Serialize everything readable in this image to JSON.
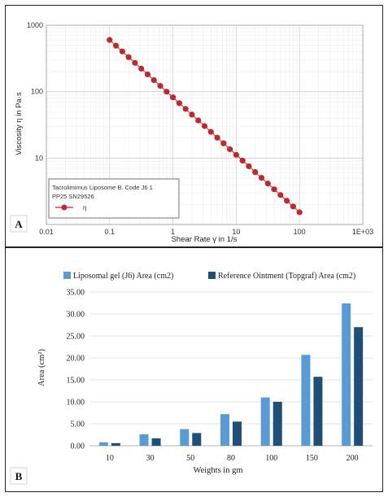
{
  "chart_data": [
    {
      "panel": "A",
      "type": "scatter",
      "xscale": "log",
      "yscale": "log",
      "xlabel": "Shear Rate γ̇ in 1/s",
      "ylabel": "Viscosity η in Pa·s",
      "x_ticks": [
        "0.01",
        "0.1",
        "1",
        "10",
        "100",
        "1E+03"
      ],
      "y_ticks": [
        "1000",
        "100",
        "10"
      ],
      "xlim": [
        0.01,
        1000
      ],
      "ylim": [
        1,
        1000
      ],
      "grid": true,
      "legend": {
        "line1": "Tacrolimimus Liposome B. Code J6 1",
        "line2": "PP25 SN29526",
        "symbol": "η",
        "position": "bottom-left"
      },
      "color": "#c0282d",
      "series": [
        {
          "name": "η",
          "x": [
            0.1,
            0.1259,
            0.1585,
            0.1995,
            0.2512,
            0.3162,
            0.3981,
            0.5012,
            0.631,
            0.7943,
            1,
            1.259,
            1.585,
            1.995,
            2.512,
            3.162,
            3.981,
            5.012,
            6.31,
            7.943,
            10,
            12.59,
            15.85,
            19.95,
            25.12,
            31.62,
            39.81,
            50.12,
            63.1,
            79.43,
            100
          ],
          "y": [
            600,
            492,
            403,
            330,
            271,
            222,
            182,
            149,
            122,
            100,
            82,
            67.1,
            55,
            45.1,
            36.9,
            30.3,
            24.8,
            20.3,
            16.7,
            13.6,
            11.2,
            9.17,
            7.52,
            6.16,
            5.05,
            4.14,
            3.39,
            2.78,
            2.28,
            1.87,
            1.53
          ]
        }
      ]
    },
    {
      "panel": "B",
      "type": "bar",
      "categories": [
        "10",
        "30",
        "50",
        "80",
        "100",
        "150",
        "200"
      ],
      "xlabel": "Weights in gm",
      "ylabel": "Area (cm²)",
      "y_ticks": [
        "0.00",
        "5.00",
        "10.00",
        "15.00",
        "20.00",
        "25.00",
        "30.00",
        "35.00"
      ],
      "ylim": [
        0,
        35
      ],
      "grid": true,
      "legend_position": "top",
      "series": [
        {
          "name": "Liposomal gel (J6) Area (cm2)",
          "color": "#5b9bd5",
          "values": [
            0.8,
            2.6,
            3.8,
            7.2,
            11.0,
            20.7,
            32.4
          ]
        },
        {
          "name": "Reference Ointment (Topgraf) Area (cm2)",
          "color": "#1f4e79",
          "values": [
            0.6,
            1.7,
            2.9,
            5.5,
            10.0,
            15.7,
            27.0
          ]
        }
      ]
    }
  ]
}
